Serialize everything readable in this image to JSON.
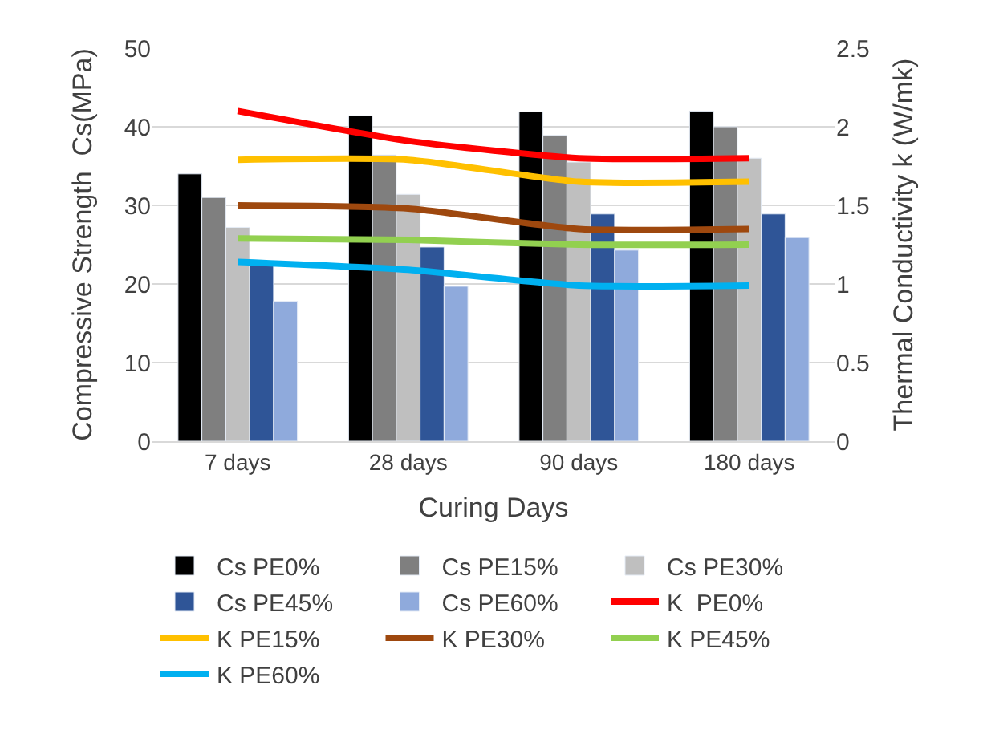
{
  "chart_data": {
    "type": "bar",
    "xlabel": "Curing Days",
    "ylabel": "Compressive Strength  Cs(MPa)",
    "y2label": "Thermal Conductivity k (W/mk)",
    "categories": [
      "7 days",
      "28 days",
      "90 days",
      "180 days"
    ],
    "series": [
      {
        "name": "Cs PE0%",
        "color": "#000000",
        "values": [
          34,
          41.4,
          41.9,
          42
        ]
      },
      {
        "name": "Cs PE15%",
        "color": "#7f7f7f",
        "values": [
          31,
          36.4,
          38.9,
          40
        ]
      },
      {
        "name": "Cs PE30%",
        "color": "#bfbfbf",
        "values": [
          27.2,
          31.4,
          35.5,
          36
        ]
      },
      {
        "name": "Cs PE45%",
        "color": "#2f5597",
        "values": [
          22.3,
          24.7,
          28.9,
          28.9
        ]
      },
      {
        "name": "Cs PE60%",
        "color": "#8faadc",
        "values": [
          17.8,
          19.7,
          24.3,
          25.9
        ]
      },
      {
        "name": "K  PE0%",
        "type": "line",
        "axis": "y2",
        "color": "#ff0000",
        "values": [
          2.1,
          1.91,
          1.8,
          1.8
        ]
      },
      {
        "name": "K PE15%",
        "type": "line",
        "axis": "y2",
        "color": "#ffc000",
        "values": [
          1.79,
          1.79,
          1.65,
          1.65
        ]
      },
      {
        "name": "K PE30%",
        "type": "line",
        "axis": "y2",
        "color": "#9e480e",
        "values": [
          1.5,
          1.48,
          1.35,
          1.35
        ]
      },
      {
        "name": "K PE45%",
        "type": "line",
        "axis": "y2",
        "color": "#92d050",
        "values": [
          1.29,
          1.28,
          1.25,
          1.25
        ]
      },
      {
        "name": "K PE60%",
        "type": "line",
        "axis": "y2",
        "color": "#00b0f0",
        "values": [
          1.14,
          1.09,
          0.99,
          0.99
        ]
      }
    ],
    "ylim": [
      0,
      50
    ],
    "yticks": [
      0,
      10,
      20,
      30,
      40,
      50
    ],
    "y2lim": [
      0,
      2.5
    ],
    "y2ticks": [
      0,
      0.5,
      1,
      1.5,
      2,
      2.5
    ],
    "grid": "y",
    "legend": "bottom",
    "marker": "none"
  }
}
